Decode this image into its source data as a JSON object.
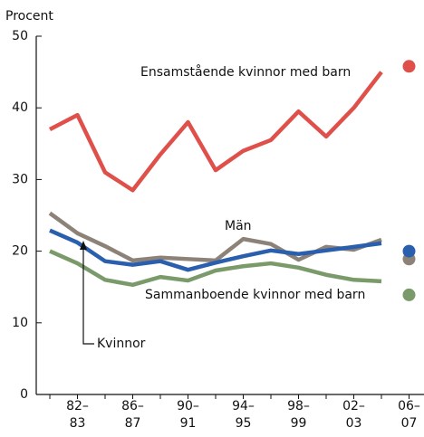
{
  "chart_data": {
    "type": "line",
    "y_label": "Procent",
    "categories": [
      null,
      "82–83",
      null,
      "86–87",
      null,
      "90–91",
      null,
      "94–95",
      null,
      "98–99",
      null,
      "02–03",
      null,
      "06–07"
    ],
    "ylim": [
      0,
      50
    ],
    "yticks": [
      0,
      10,
      20,
      30,
      40,
      50
    ],
    "series": [
      {
        "name": "Ensamstående kvinnor med barn",
        "color": "#e0504a",
        "values": [
          37,
          39,
          31,
          28.5,
          33.5,
          38,
          31.3,
          34,
          35.5,
          39.5,
          36,
          40,
          45,
          null
        ],
        "last_value": 45.8
      },
      {
        "name": "Män",
        "color": "#8c8278",
        "values": [
          25.3,
          22.5,
          20.7,
          18.7,
          19.1,
          18.9,
          18.7,
          21.7,
          21,
          18.8,
          20.6,
          20.2,
          21.6,
          null
        ],
        "last_value": 18.9
      },
      {
        "name": "Kvinnor",
        "color": "#2a5fad",
        "values": [
          22.9,
          21.2,
          18.6,
          18.1,
          18.6,
          17.4,
          18.4,
          19.3,
          20.1,
          19.6,
          20.1,
          20.6,
          21.1,
          null
        ],
        "last_value": 20
      },
      {
        "name": "Sammanboende kvinnor med barn",
        "color": "#7a9a6a",
        "values": [
          20,
          18.3,
          16,
          15.3,
          16.4,
          15.9,
          17.3,
          17.9,
          18.3,
          17.7,
          16.7,
          16,
          15.8,
          null
        ],
        "last_value": 13.9
      }
    ]
  }
}
